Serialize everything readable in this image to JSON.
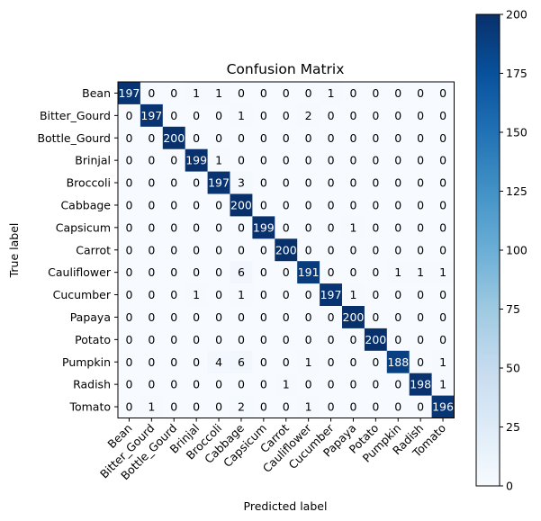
{
  "chart_data": {
    "type": "heatmap",
    "title": "Confusion Matrix",
    "xlabel": "Predicted label",
    "ylabel": "True label",
    "categories": [
      "Bean",
      "Bitter_Gourd",
      "Bottle_Gourd",
      "Brinjal",
      "Broccoli",
      "Cabbage",
      "Capsicum",
      "Carrot",
      "Cauliflower",
      "Cucumber",
      "Papaya",
      "Potato",
      "Pumpkin",
      "Radish",
      "Tomato"
    ],
    "matrix": [
      [
        197,
        0,
        0,
        1,
        1,
        0,
        0,
        0,
        0,
        1,
        0,
        0,
        0,
        0,
        0
      ],
      [
        0,
        197,
        0,
        0,
        0,
        1,
        0,
        0,
        2,
        0,
        0,
        0,
        0,
        0,
        0
      ],
      [
        0,
        0,
        200,
        0,
        0,
        0,
        0,
        0,
        0,
        0,
        0,
        0,
        0,
        0,
        0
      ],
      [
        0,
        0,
        0,
        199,
        1,
        0,
        0,
        0,
        0,
        0,
        0,
        0,
        0,
        0,
        0
      ],
      [
        0,
        0,
        0,
        0,
        197,
        3,
        0,
        0,
        0,
        0,
        0,
        0,
        0,
        0,
        0
      ],
      [
        0,
        0,
        0,
        0,
        0,
        200,
        0,
        0,
        0,
        0,
        0,
        0,
        0,
        0,
        0
      ],
      [
        0,
        0,
        0,
        0,
        0,
        0,
        199,
        0,
        0,
        0,
        1,
        0,
        0,
        0,
        0
      ],
      [
        0,
        0,
        0,
        0,
        0,
        0,
        0,
        200,
        0,
        0,
        0,
        0,
        0,
        0,
        0
      ],
      [
        0,
        0,
        0,
        0,
        0,
        6,
        0,
        0,
        191,
        0,
        0,
        0,
        1,
        1,
        1
      ],
      [
        0,
        0,
        0,
        1,
        0,
        1,
        0,
        0,
        0,
        197,
        1,
        0,
        0,
        0,
        0
      ],
      [
        0,
        0,
        0,
        0,
        0,
        0,
        0,
        0,
        0,
        0,
        200,
        0,
        0,
        0,
        0
      ],
      [
        0,
        0,
        0,
        0,
        0,
        0,
        0,
        0,
        0,
        0,
        0,
        200,
        0,
        0,
        0
      ],
      [
        0,
        0,
        0,
        0,
        4,
        6,
        0,
        0,
        1,
        0,
        0,
        0,
        188,
        0,
        1
      ],
      [
        0,
        0,
        0,
        0,
        0,
        0,
        0,
        1,
        0,
        0,
        0,
        0,
        0,
        198,
        1
      ],
      [
        0,
        1,
        0,
        0,
        0,
        2,
        0,
        0,
        1,
        0,
        0,
        0,
        0,
        0,
        196
      ]
    ],
    "colorbar": {
      "min": 0,
      "max": 200,
      "ticks": [
        0,
        25,
        50,
        75,
        100,
        125,
        150,
        175,
        200
      ],
      "colormap": "Blues"
    },
    "colors": {
      "low": "#f7fbff",
      "high": "#08306b",
      "text_dark": "#000000",
      "text_light": "#ffffff"
    }
  }
}
